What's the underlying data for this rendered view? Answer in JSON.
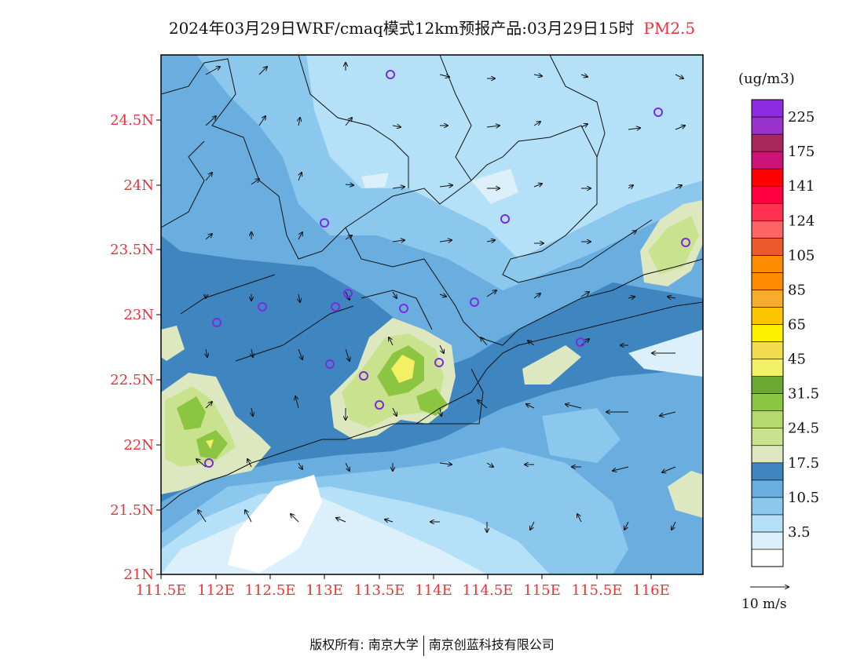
{
  "title": {
    "main": "2024年03月29日WRF/cmaq模式12km预报产品:03月29日15时",
    "variable": "PM2.5"
  },
  "latitude_labels": [
    "24.5N",
    "24N",
    "23.5N",
    "23N",
    "22.5N",
    "22N",
    "21.5N",
    "21N"
  ],
  "longitude_labels": [
    "111.5E",
    "112E",
    "112.5E",
    "113E",
    "113.5E",
    "114E",
    "114.5E",
    "115E",
    "115.5E",
    "116E"
  ],
  "legend": {
    "unit": "(ug/m3)",
    "bins": [
      {
        "color": "#ffffff",
        "label": ""
      },
      {
        "color": "#dcf0fb",
        "label": "3.5"
      },
      {
        "color": "#b4e1f7",
        "label": ""
      },
      {
        "color": "#8cc8ee",
        "label": "10.5"
      },
      {
        "color": "#6aaedf",
        "label": ""
      },
      {
        "color": "#3f86c0",
        "label": "17.5"
      },
      {
        "color": "#dde8c0",
        "label": ""
      },
      {
        "color": "#c9e28e",
        "label": "24.5"
      },
      {
        "color": "#b5d96e",
        "label": ""
      },
      {
        "color": "#8cc542",
        "label": "31.5"
      },
      {
        "color": "#6aa832",
        "label": ""
      },
      {
        "color": "#f2f064",
        "label": "45"
      },
      {
        "color": "#f4dc50",
        "label": ""
      },
      {
        "color": "#fff000",
        "label": "65"
      },
      {
        "color": "#fdc500",
        "label": ""
      },
      {
        "color": "#f9ab2c",
        "label": "85"
      },
      {
        "color": "#ff8c00",
        "label": ""
      },
      {
        "color": "#ff8c00",
        "label": "105"
      },
      {
        "color": "#ea5a2c",
        "label": ""
      },
      {
        "color": "#ff6464",
        "label": "124"
      },
      {
        "color": "#ff3050",
        "label": ""
      },
      {
        "color": "#ff0040",
        "label": "141"
      },
      {
        "color": "#ff0000",
        "label": ""
      },
      {
        "color": "#cc1478",
        "label": "175"
      },
      {
        "color": "#a8285a",
        "label": ""
      },
      {
        "color": "#9a32cd",
        "label": "225"
      },
      {
        "color": "#8c2be2",
        "label": ""
      }
    ]
  },
  "wind_reference": "10  m/s",
  "footer": {
    "left": "版权所有: 南京大学",
    "right": "南京创蓝科技有限公司"
  }
}
